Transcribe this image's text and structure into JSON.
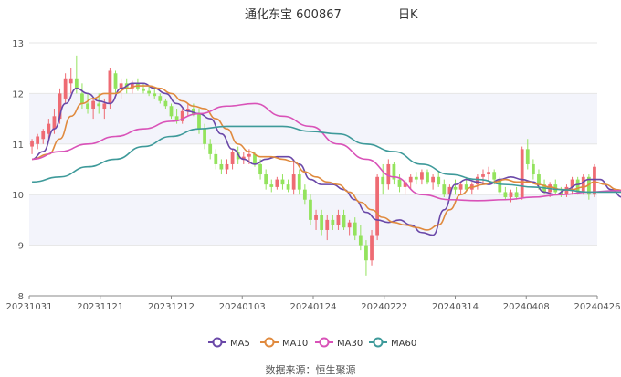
{
  "header": {
    "stock": "通化东宝 600867",
    "period": "日K"
  },
  "source": "数据来源：恒生聚源",
  "colors": {
    "up": "#ee6b73",
    "down": "#93e35d",
    "ma5": "#6a48a8",
    "ma10": "#e08a3e",
    "ma30": "#d952b8",
    "ma60": "#3e9a9a",
    "band": "#f3f4fb",
    "grid": "#e6e6e6",
    "axis": "#555555"
  },
  "chart_data": {
    "type": "candlestick",
    "y_ticks": [
      8,
      9,
      10,
      11,
      12,
      13
    ],
    "ylim": [
      8,
      13
    ],
    "x_ticks": [
      "20231031",
      "20231121",
      "20231212",
      "20240103",
      "20240124",
      "20240222",
      "20240314",
      "20240408",
      "20240426"
    ],
    "legend": [
      "MA5",
      "MA10",
      "MA30",
      "MA60"
    ],
    "legend_position": "bottom",
    "series_keys": [
      "MA5",
      "MA10",
      "MA30",
      "MA60"
    ],
    "ma_points": {
      "MA5": [
        [
          0,
          10.7
        ],
        [
          2,
          10.85
        ],
        [
          4,
          11.3
        ],
        [
          6,
          11.8
        ],
        [
          8,
          12.1
        ],
        [
          10,
          12.0
        ],
        [
          12,
          11.85
        ],
        [
          14,
          11.8
        ],
        [
          16,
          12.1
        ],
        [
          18,
          12.2
        ],
        [
          20,
          12.2
        ],
        [
          22,
          12.1
        ],
        [
          24,
          12.0
        ],
        [
          26,
          11.8
        ],
        [
          28,
          11.65
        ],
        [
          30,
          11.6
        ],
        [
          32,
          11.5
        ],
        [
          34,
          11.2
        ],
        [
          36,
          10.9
        ],
        [
          38,
          10.7
        ],
        [
          40,
          10.6
        ],
        [
          42,
          10.7
        ],
        [
          44,
          10.75
        ],
        [
          46,
          10.75
        ],
        [
          48,
          10.6
        ],
        [
          50,
          10.3
        ],
        [
          52,
          10.2
        ],
        [
          54,
          10.2
        ],
        [
          56,
          10.1
        ],
        [
          58,
          9.9
        ],
        [
          60,
          9.65
        ],
        [
          62,
          9.5
        ],
        [
          64,
          9.45
        ],
        [
          66,
          9.5
        ],
        [
          68,
          9.4
        ],
        [
          70,
          9.25
        ],
        [
          72,
          9.2
        ],
        [
          74,
          9.7
        ],
        [
          76,
          10.2
        ],
        [
          78,
          10.3
        ],
        [
          80,
          10.25
        ],
        [
          82,
          10.2
        ],
        [
          84,
          10.3
        ],
        [
          86,
          10.35
        ],
        [
          88,
          10.3
        ],
        [
          90,
          10.25
        ],
        [
          92,
          10.05
        ],
        [
          94,
          10.0
        ],
        [
          96,
          10.1
        ],
        [
          98,
          10.2
        ],
        [
          100,
          10.3
        ],
        [
          102,
          10.3
        ],
        [
          104,
          10.1
        ],
        [
          106,
          9.95
        ],
        [
          108,
          10.1
        ],
        [
          110,
          10.4
        ],
        [
          112,
          10.5
        ],
        [
          114,
          10.3
        ],
        [
          116,
          10.1
        ],
        [
          118,
          10.05
        ],
        [
          120,
          10.05
        ],
        [
          122,
          10.05
        ],
        [
          124,
          10.1
        ],
        [
          126,
          10.15
        ],
        [
          127,
          10.15
        ]
      ],
      "MA10": [
        [
          0,
          10.7
        ],
        [
          3,
          10.8
        ],
        [
          5,
          11.1
        ],
        [
          7,
          11.55
        ],
        [
          9,
          11.8
        ],
        [
          11,
          11.9
        ],
        [
          13,
          12.0
        ],
        [
          15,
          12.0
        ],
        [
          17,
          12.1
        ],
        [
          19,
          12.15
        ],
        [
          21,
          12.15
        ],
        [
          23,
          12.1
        ],
        [
          25,
          12.0
        ],
        [
          27,
          11.85
        ],
        [
          29,
          11.75
        ],
        [
          31,
          11.7
        ],
        [
          33,
          11.5
        ],
        [
          35,
          11.3
        ],
        [
          37,
          11.0
        ],
        [
          39,
          10.85
        ],
        [
          41,
          10.75
        ],
        [
          43,
          10.75
        ],
        [
          45,
          10.7
        ],
        [
          47,
          10.65
        ],
        [
          49,
          10.45
        ],
        [
          51,
          10.35
        ],
        [
          53,
          10.25
        ],
        [
          55,
          10.2
        ],
        [
          57,
          10.05
        ],
        [
          59,
          9.85
        ],
        [
          61,
          9.7
        ],
        [
          63,
          9.55
        ],
        [
          65,
          9.45
        ],
        [
          67,
          9.4
        ],
        [
          69,
          9.35
        ],
        [
          71,
          9.3
        ],
        [
          73,
          9.4
        ],
        [
          75,
          9.7
        ],
        [
          77,
          10.0
        ],
        [
          79,
          10.15
        ],
        [
          81,
          10.2
        ],
        [
          83,
          10.25
        ],
        [
          85,
          10.3
        ],
        [
          87,
          10.25
        ],
        [
          89,
          10.25
        ],
        [
          91,
          10.2
        ],
        [
          93,
          10.15
        ],
        [
          95,
          10.1
        ],
        [
          97,
          10.1
        ],
        [
          99,
          10.15
        ],
        [
          101,
          10.25
        ],
        [
          103,
          10.2
        ],
        [
          105,
          10.1
        ],
        [
          107,
          10.05
        ],
        [
          109,
          10.15
        ],
        [
          111,
          10.25
        ],
        [
          113,
          10.3
        ],
        [
          115,
          10.25
        ],
        [
          117,
          10.2
        ],
        [
          119,
          10.1
        ],
        [
          121,
          10.1
        ],
        [
          123,
          10.15
        ],
        [
          125,
          10.1
        ],
        [
          127,
          10.1
        ]
      ],
      "MA30": [
        [
          0,
          10.7
        ],
        [
          5,
          10.85
        ],
        [
          10,
          11.0
        ],
        [
          15,
          11.15
        ],
        [
          20,
          11.3
        ],
        [
          25,
          11.45
        ],
        [
          30,
          11.6
        ],
        [
          35,
          11.75
        ],
        [
          40,
          11.8
        ],
        [
          45,
          11.55
        ],
        [
          50,
          11.35
        ],
        [
          55,
          11.0
        ],
        [
          60,
          10.7
        ],
        [
          65,
          10.35
        ],
        [
          70,
          10.0
        ],
        [
          75,
          9.9
        ],
        [
          80,
          9.88
        ],
        [
          85,
          9.9
        ],
        [
          90,
          9.95
        ],
        [
          95,
          10.0
        ],
        [
          100,
          10.05
        ],
        [
          105,
          10.08
        ],
        [
          110,
          10.1
        ],
        [
          115,
          10.1
        ],
        [
          120,
          10.08
        ],
        [
          127,
          10.08
        ]
      ],
      "MA60": [
        [
          0,
          10.25
        ],
        [
          5,
          10.35
        ],
        [
          10,
          10.55
        ],
        [
          15,
          10.7
        ],
        [
          20,
          10.95
        ],
        [
          25,
          11.15
        ],
        [
          30,
          11.3
        ],
        [
          35,
          11.35
        ],
        [
          40,
          11.35
        ],
        [
          45,
          11.35
        ],
        [
          50,
          11.25
        ],
        [
          55,
          11.2
        ],
        [
          60,
          11.0
        ],
        [
          65,
          10.85
        ],
        [
          70,
          10.6
        ],
        [
          75,
          10.4
        ],
        [
          80,
          10.3
        ],
        [
          85,
          10.2
        ],
        [
          90,
          10.15
        ],
        [
          95,
          10.1
        ],
        [
          100,
          10.05
        ],
        [
          105,
          10.05
        ],
        [
          110,
          10.03
        ],
        [
          115,
          10.05
        ],
        [
          120,
          10.05
        ],
        [
          127,
          10.05
        ]
      ]
    },
    "candles": [
      {
        "o": 10.95,
        "h": 11.1,
        "l": 10.8,
        "c": 11.05
      },
      {
        "o": 11.0,
        "h": 11.2,
        "l": 10.9,
        "c": 11.15
      },
      {
        "o": 11.1,
        "h": 11.3,
        "l": 11.0,
        "c": 11.25
      },
      {
        "o": 11.2,
        "h": 11.5,
        "l": 11.1,
        "c": 11.4
      },
      {
        "o": 11.3,
        "h": 11.7,
        "l": 11.2,
        "c": 11.55
      },
      {
        "o": 11.5,
        "h": 12.1,
        "l": 11.4,
        "c": 12.0
      },
      {
        "o": 11.9,
        "h": 12.4,
        "l": 11.8,
        "c": 12.3
      },
      {
        "o": 12.2,
        "h": 12.5,
        "l": 12.0,
        "c": 12.3
      },
      {
        "o": 12.3,
        "h": 12.75,
        "l": 12.0,
        "c": 12.1
      },
      {
        "o": 12.0,
        "h": 12.2,
        "l": 11.7,
        "c": 11.8
      },
      {
        "o": 11.8,
        "h": 12.0,
        "l": 11.6,
        "c": 11.7
      },
      {
        "o": 11.7,
        "h": 11.9,
        "l": 11.5,
        "c": 11.85
      },
      {
        "o": 11.8,
        "h": 12.0,
        "l": 11.6,
        "c": 11.75
      },
      {
        "o": 11.7,
        "h": 11.9,
        "l": 11.5,
        "c": 11.8
      },
      {
        "o": 11.8,
        "h": 12.5,
        "l": 11.7,
        "c": 12.45
      },
      {
        "o": 12.4,
        "h": 12.45,
        "l": 12.0,
        "c": 12.1
      },
      {
        "o": 12.1,
        "h": 12.3,
        "l": 11.9,
        "c": 12.2
      },
      {
        "o": 12.2,
        "h": 12.3,
        "l": 12.0,
        "c": 12.1
      },
      {
        "o": 12.1,
        "h": 12.25,
        "l": 12.0,
        "c": 12.2
      },
      {
        "o": 12.2,
        "h": 12.3,
        "l": 12.05,
        "c": 12.1
      },
      {
        "o": 12.1,
        "h": 12.2,
        "l": 12.0,
        "c": 12.05
      },
      {
        "o": 12.05,
        "h": 12.15,
        "l": 11.95,
        "c": 12.0
      },
      {
        "o": 12.0,
        "h": 12.1,
        "l": 11.9,
        "c": 11.95
      },
      {
        "o": 11.95,
        "h": 12.0,
        "l": 11.8,
        "c": 11.85
      },
      {
        "o": 11.85,
        "h": 11.9,
        "l": 11.7,
        "c": 11.75
      },
      {
        "o": 11.75,
        "h": 11.8,
        "l": 11.5,
        "c": 11.55
      },
      {
        "o": 11.55,
        "h": 11.7,
        "l": 11.4,
        "c": 11.45
      },
      {
        "o": 11.45,
        "h": 11.7,
        "l": 11.4,
        "c": 11.65
      },
      {
        "o": 11.65,
        "h": 11.8,
        "l": 11.55,
        "c": 11.7
      },
      {
        "o": 11.7,
        "h": 11.8,
        "l": 11.55,
        "c": 11.6
      },
      {
        "o": 11.6,
        "h": 11.7,
        "l": 11.2,
        "c": 11.3
      },
      {
        "o": 11.3,
        "h": 11.4,
        "l": 10.9,
        "c": 11.0
      },
      {
        "o": 11.0,
        "h": 11.1,
        "l": 10.7,
        "c": 10.8
      },
      {
        "o": 10.8,
        "h": 10.9,
        "l": 10.5,
        "c": 10.6
      },
      {
        "o": 10.6,
        "h": 10.7,
        "l": 10.4,
        "c": 10.5
      },
      {
        "o": 10.5,
        "h": 10.7,
        "l": 10.4,
        "c": 10.6
      },
      {
        "o": 10.6,
        "h": 10.9,
        "l": 10.5,
        "c": 10.85
      },
      {
        "o": 10.85,
        "h": 10.95,
        "l": 10.6,
        "c": 10.7
      },
      {
        "o": 10.7,
        "h": 10.85,
        "l": 10.6,
        "c": 10.75
      },
      {
        "o": 10.75,
        "h": 10.9,
        "l": 10.6,
        "c": 10.8
      },
      {
        "o": 10.8,
        "h": 10.85,
        "l": 10.55,
        "c": 10.6
      },
      {
        "o": 10.6,
        "h": 10.7,
        "l": 10.3,
        "c": 10.4
      },
      {
        "o": 10.4,
        "h": 10.5,
        "l": 10.1,
        "c": 10.2
      },
      {
        "o": 10.2,
        "h": 10.3,
        "l": 10.05,
        "c": 10.15
      },
      {
        "o": 10.15,
        "h": 10.35,
        "l": 10.1,
        "c": 10.3
      },
      {
        "o": 10.3,
        "h": 10.4,
        "l": 10.1,
        "c": 10.2
      },
      {
        "o": 10.2,
        "h": 10.3,
        "l": 10.05,
        "c": 10.1
      },
      {
        "o": 10.1,
        "h": 10.7,
        "l": 10.0,
        "c": 10.4
      },
      {
        "o": 10.4,
        "h": 10.5,
        "l": 10.0,
        "c": 10.1
      },
      {
        "o": 10.1,
        "h": 10.2,
        "l": 9.8,
        "c": 9.9
      },
      {
        "o": 9.9,
        "h": 10.0,
        "l": 9.4,
        "c": 9.5
      },
      {
        "o": 9.5,
        "h": 9.7,
        "l": 9.3,
        "c": 9.6
      },
      {
        "o": 9.6,
        "h": 9.7,
        "l": 9.2,
        "c": 9.3
      },
      {
        "o": 9.3,
        "h": 9.6,
        "l": 9.1,
        "c": 9.5
      },
      {
        "o": 9.5,
        "h": 9.6,
        "l": 9.3,
        "c": 9.4
      },
      {
        "o": 9.4,
        "h": 9.7,
        "l": 9.3,
        "c": 9.6
      },
      {
        "o": 9.6,
        "h": 9.7,
        "l": 9.3,
        "c": 9.35
      },
      {
        "o": 9.35,
        "h": 9.5,
        "l": 9.2,
        "c": 9.45
      },
      {
        "o": 9.45,
        "h": 9.55,
        "l": 9.1,
        "c": 9.2
      },
      {
        "o": 9.2,
        "h": 9.4,
        "l": 8.9,
        "c": 9.0
      },
      {
        "o": 9.0,
        "h": 9.1,
        "l": 8.4,
        "c": 8.7
      },
      {
        "o": 8.7,
        "h": 9.3,
        "l": 8.6,
        "c": 9.2
      },
      {
        "o": 9.2,
        "h": 10.4,
        "l": 9.1,
        "c": 10.35
      },
      {
        "o": 10.35,
        "h": 10.6,
        "l": 10.0,
        "c": 10.2
      },
      {
        "o": 10.2,
        "h": 10.7,
        "l": 10.1,
        "c": 10.6
      },
      {
        "o": 10.6,
        "h": 10.65,
        "l": 10.2,
        "c": 10.3
      },
      {
        "o": 10.3,
        "h": 10.4,
        "l": 10.05,
        "c": 10.15
      },
      {
        "o": 10.15,
        "h": 10.3,
        "l": 10.0,
        "c": 10.25
      },
      {
        "o": 10.25,
        "h": 10.4,
        "l": 10.1,
        "c": 10.35
      },
      {
        "o": 10.35,
        "h": 10.45,
        "l": 10.2,
        "c": 10.3
      },
      {
        "o": 10.3,
        "h": 10.5,
        "l": 10.2,
        "c": 10.45
      },
      {
        "o": 10.45,
        "h": 10.5,
        "l": 10.2,
        "c": 10.25
      },
      {
        "o": 10.25,
        "h": 10.4,
        "l": 10.1,
        "c": 10.35
      },
      {
        "o": 10.35,
        "h": 10.45,
        "l": 10.15,
        "c": 10.2
      },
      {
        "o": 10.2,
        "h": 10.3,
        "l": 9.95,
        "c": 10.0
      },
      {
        "o": 10.0,
        "h": 10.2,
        "l": 9.9,
        "c": 10.15
      },
      {
        "o": 10.15,
        "h": 10.3,
        "l": 10.0,
        "c": 10.1
      },
      {
        "o": 10.1,
        "h": 10.25,
        "l": 10.0,
        "c": 10.2
      },
      {
        "o": 10.2,
        "h": 10.35,
        "l": 10.05,
        "c": 10.1
      },
      {
        "o": 10.1,
        "h": 10.25,
        "l": 10.0,
        "c": 10.2
      },
      {
        "o": 10.2,
        "h": 10.4,
        "l": 10.1,
        "c": 10.35
      },
      {
        "o": 10.35,
        "h": 10.5,
        "l": 10.2,
        "c": 10.4
      },
      {
        "o": 10.4,
        "h": 10.55,
        "l": 10.25,
        "c": 10.45
      },
      {
        "o": 10.45,
        "h": 10.5,
        "l": 10.2,
        "c": 10.3
      },
      {
        "o": 10.3,
        "h": 10.35,
        "l": 10.0,
        "c": 10.05
      },
      {
        "o": 10.05,
        "h": 10.15,
        "l": 9.9,
        "c": 9.95
      },
      {
        "o": 9.95,
        "h": 10.1,
        "l": 9.85,
        "c": 10.05
      },
      {
        "o": 10.05,
        "h": 10.15,
        "l": 9.9,
        "c": 9.95
      },
      {
        "o": 9.95,
        "h": 10.95,
        "l": 9.9,
        "c": 10.9
      },
      {
        "o": 10.9,
        "h": 11.1,
        "l": 10.5,
        "c": 10.6
      },
      {
        "o": 10.6,
        "h": 10.7,
        "l": 10.3,
        "c": 10.4
      },
      {
        "o": 10.4,
        "h": 10.5,
        "l": 10.1,
        "c": 10.2
      },
      {
        "o": 10.2,
        "h": 10.3,
        "l": 10.0,
        "c": 10.05
      },
      {
        "o": 10.05,
        "h": 10.25,
        "l": 9.95,
        "c": 10.2
      },
      {
        "o": 10.2,
        "h": 10.3,
        "l": 10.0,
        "c": 10.05
      },
      {
        "o": 10.05,
        "h": 10.15,
        "l": 9.95,
        "c": 10.0
      },
      {
        "o": 10.0,
        "h": 10.2,
        "l": 9.95,
        "c": 10.15
      },
      {
        "o": 10.15,
        "h": 10.35,
        "l": 10.0,
        "c": 10.3
      },
      {
        "o": 10.3,
        "h": 10.35,
        "l": 10.0,
        "c": 10.05
      },
      {
        "o": 10.05,
        "h": 10.4,
        "l": 10.0,
        "c": 10.35
      },
      {
        "o": 10.35,
        "h": 10.4,
        "l": 9.9,
        "c": 10.0
      },
      {
        "o": 10.0,
        "h": 10.6,
        "l": 9.95,
        "c": 10.55
      }
    ]
  }
}
